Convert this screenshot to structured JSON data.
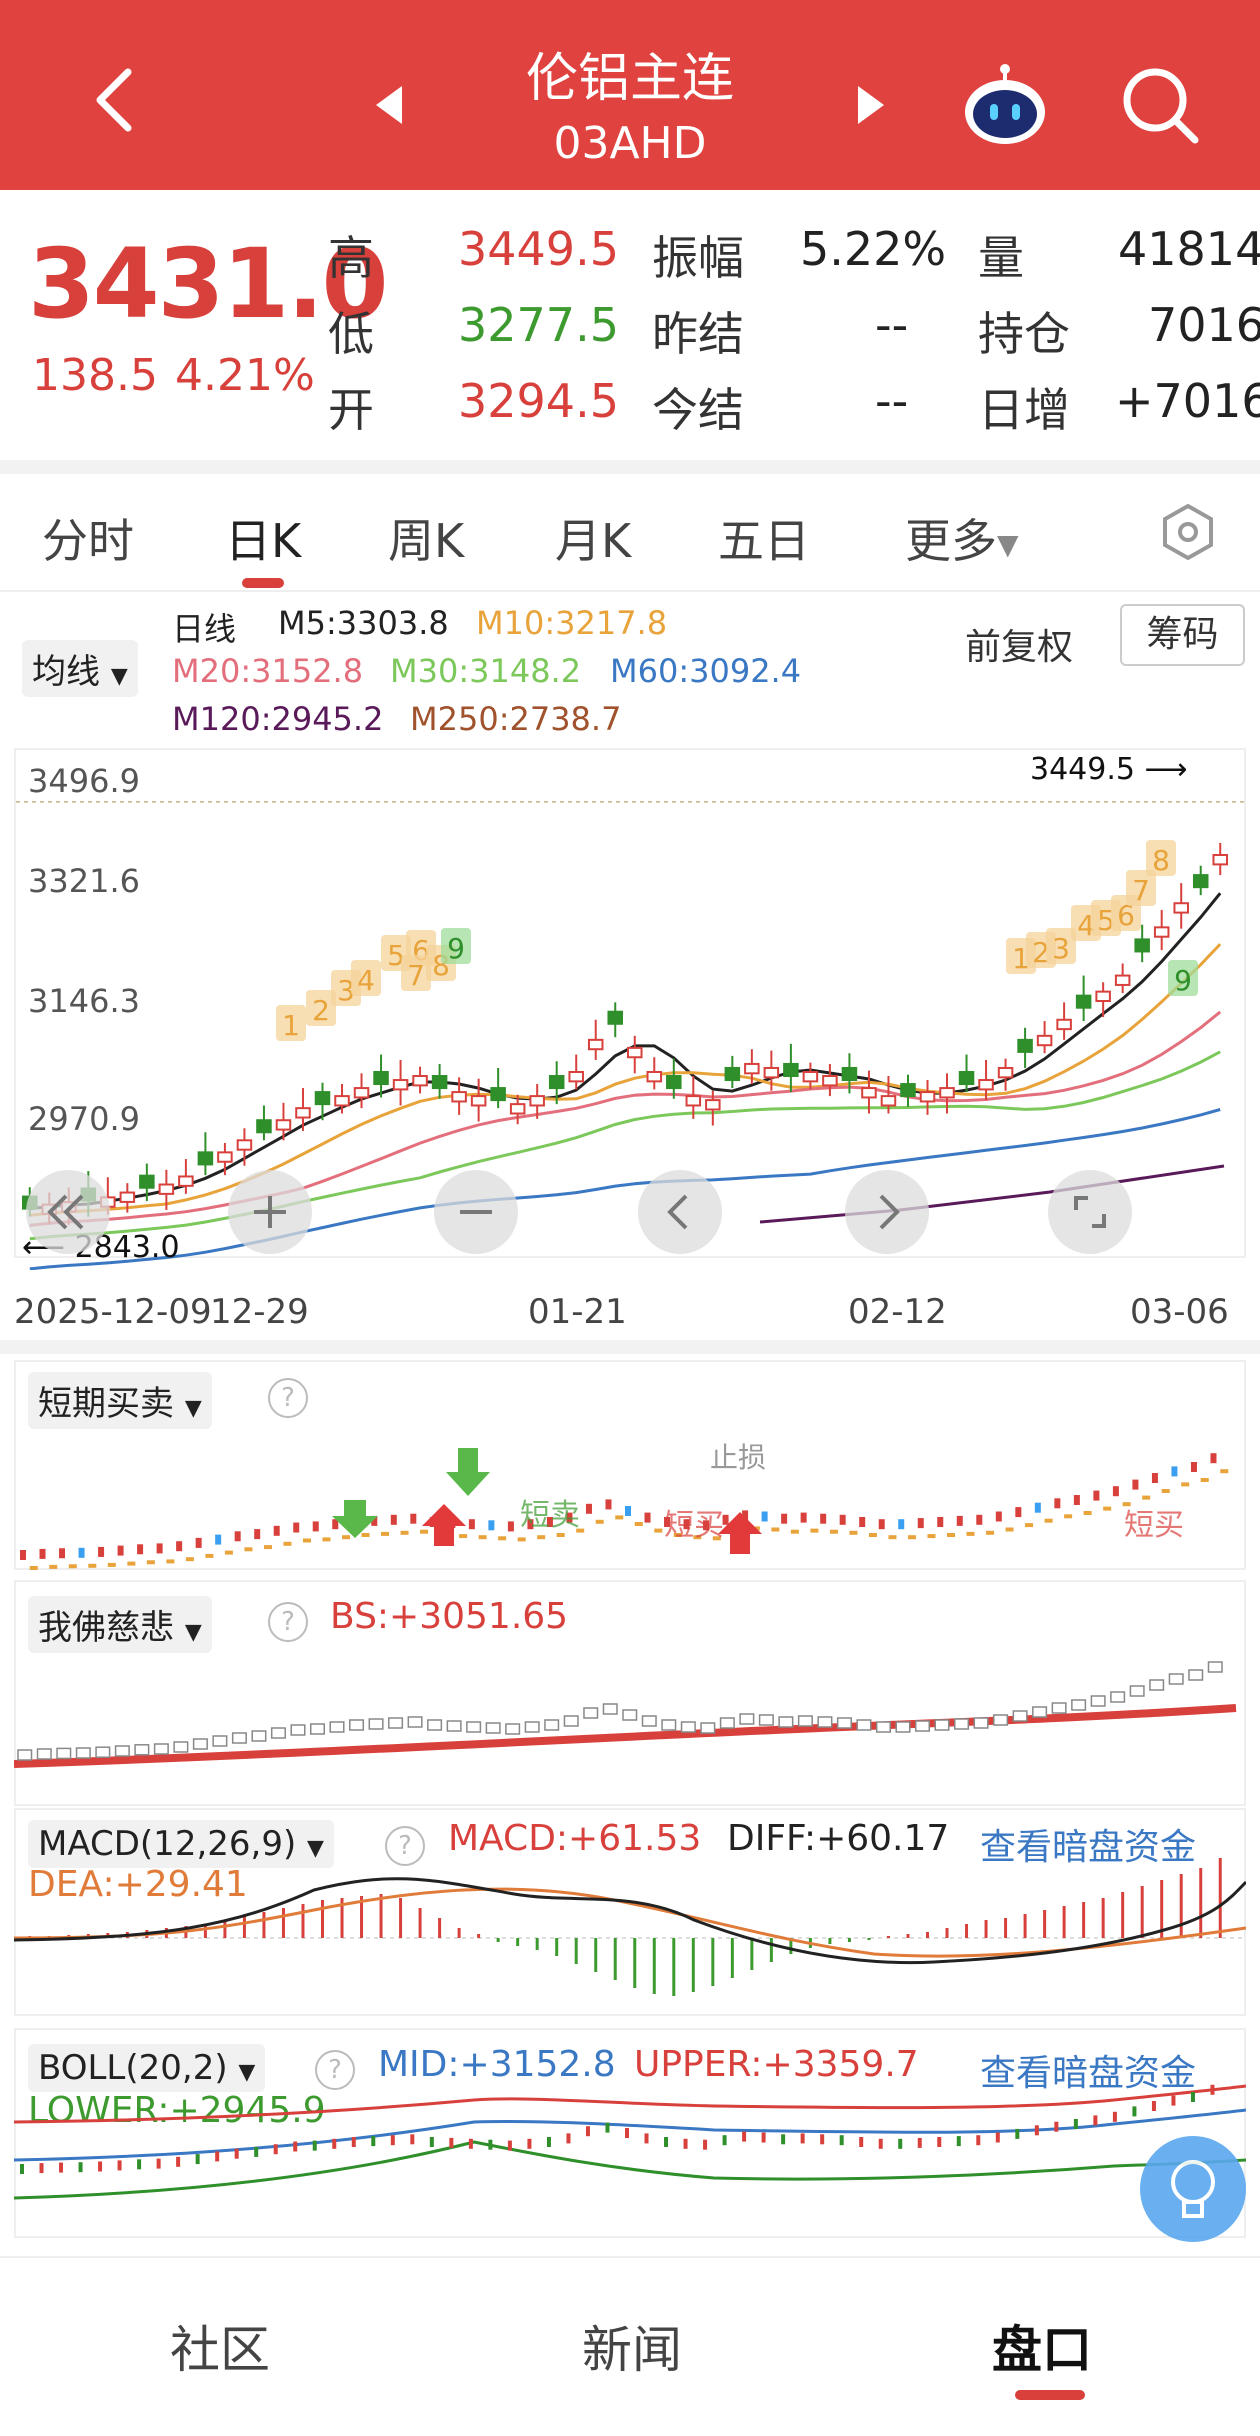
{
  "header": {
    "title": "伦铝主连",
    "code": "03AHD",
    "bg_color": "#e0423f"
  },
  "quote": {
    "price": "3431.0",
    "change": "138.5",
    "change_pct": "4.21%",
    "high_label": "高",
    "high": "3449.5",
    "low_label": "低",
    "low": "3277.5",
    "open_label": "开",
    "open": "3294.5",
    "amp_label": "振幅",
    "amp": "5.22%",
    "prev_settle_label": "昨结",
    "prev_settle": "--",
    "settle_label": "今结",
    "settle": "--",
    "vol_label": "量",
    "vol": "41814",
    "oi_label": "持仓",
    "oi": "7016",
    "oi_chg_label": "日增",
    "oi_chg": "+7016"
  },
  "tabs": [
    "分时",
    "日K",
    "周K",
    "月K",
    "五日",
    "更多"
  ],
  "active_tab": "日K",
  "main_chart": {
    "ma_dropdown": "均线",
    "daily": "日线",
    "m5": "M5:3303.8",
    "m10": "M10:3217.8",
    "m20": "M20:3152.8",
    "m30": "M30:3148.2",
    "m60": "M60:3092.4",
    "m120": "M120:2945.2",
    "m250": "M250:2738.7",
    "adjust": "前复权",
    "chips": "筹码",
    "y_ticks": [
      "3496.9",
      "3321.6",
      "3146.3",
      "2970.9"
    ],
    "x_ticks": [
      "2025-12-09",
      "12-29",
      "01-21",
      "02-12",
      "03-06"
    ],
    "max_label": "3449.5",
    "min_label": "2843.0",
    "colors": {
      "m5": "#222222",
      "m10": "#e8a33a",
      "m20": "#e46f7c",
      "m30": "#7cc85b",
      "m60": "#3a78c4",
      "m120": "#5a1a5a",
      "m250": "#a0522d",
      "up": "#d8403c",
      "down": "#2f8f2a"
    },
    "td_markers": [
      "1",
      "2",
      "3",
      "4",
      "5",
      "6",
      "7",
      "8",
      "9",
      "1",
      "2",
      "3",
      "4",
      "5",
      "6",
      "7",
      "8",
      "9"
    ]
  },
  "short_panel": {
    "dropdown": "短期买卖",
    "sell_label": "短卖",
    "buy_label": "短买",
    "stop_label": "止损"
  },
  "buddha_panel": {
    "dropdown": "我佛慈悲",
    "bs": "BS:+3051.65"
  },
  "macd_panel": {
    "dropdown": "MACD(12,26,9)",
    "macd": "MACD:+61.53",
    "diff": "DIFF:+60.17",
    "dea": "DEA:+29.41",
    "link": "查看暗盘资金"
  },
  "boll_panel": {
    "dropdown": "BOLL(20,2)",
    "mid": "MID:+3152.8",
    "upper": "UPPER:+3359.7",
    "lower": "LOWER:+2945.9",
    "link": "查看暗盘资金"
  },
  "bottom_tabs": [
    "社区",
    "新闻",
    "盘口"
  ],
  "bottom_active": "盘口"
}
